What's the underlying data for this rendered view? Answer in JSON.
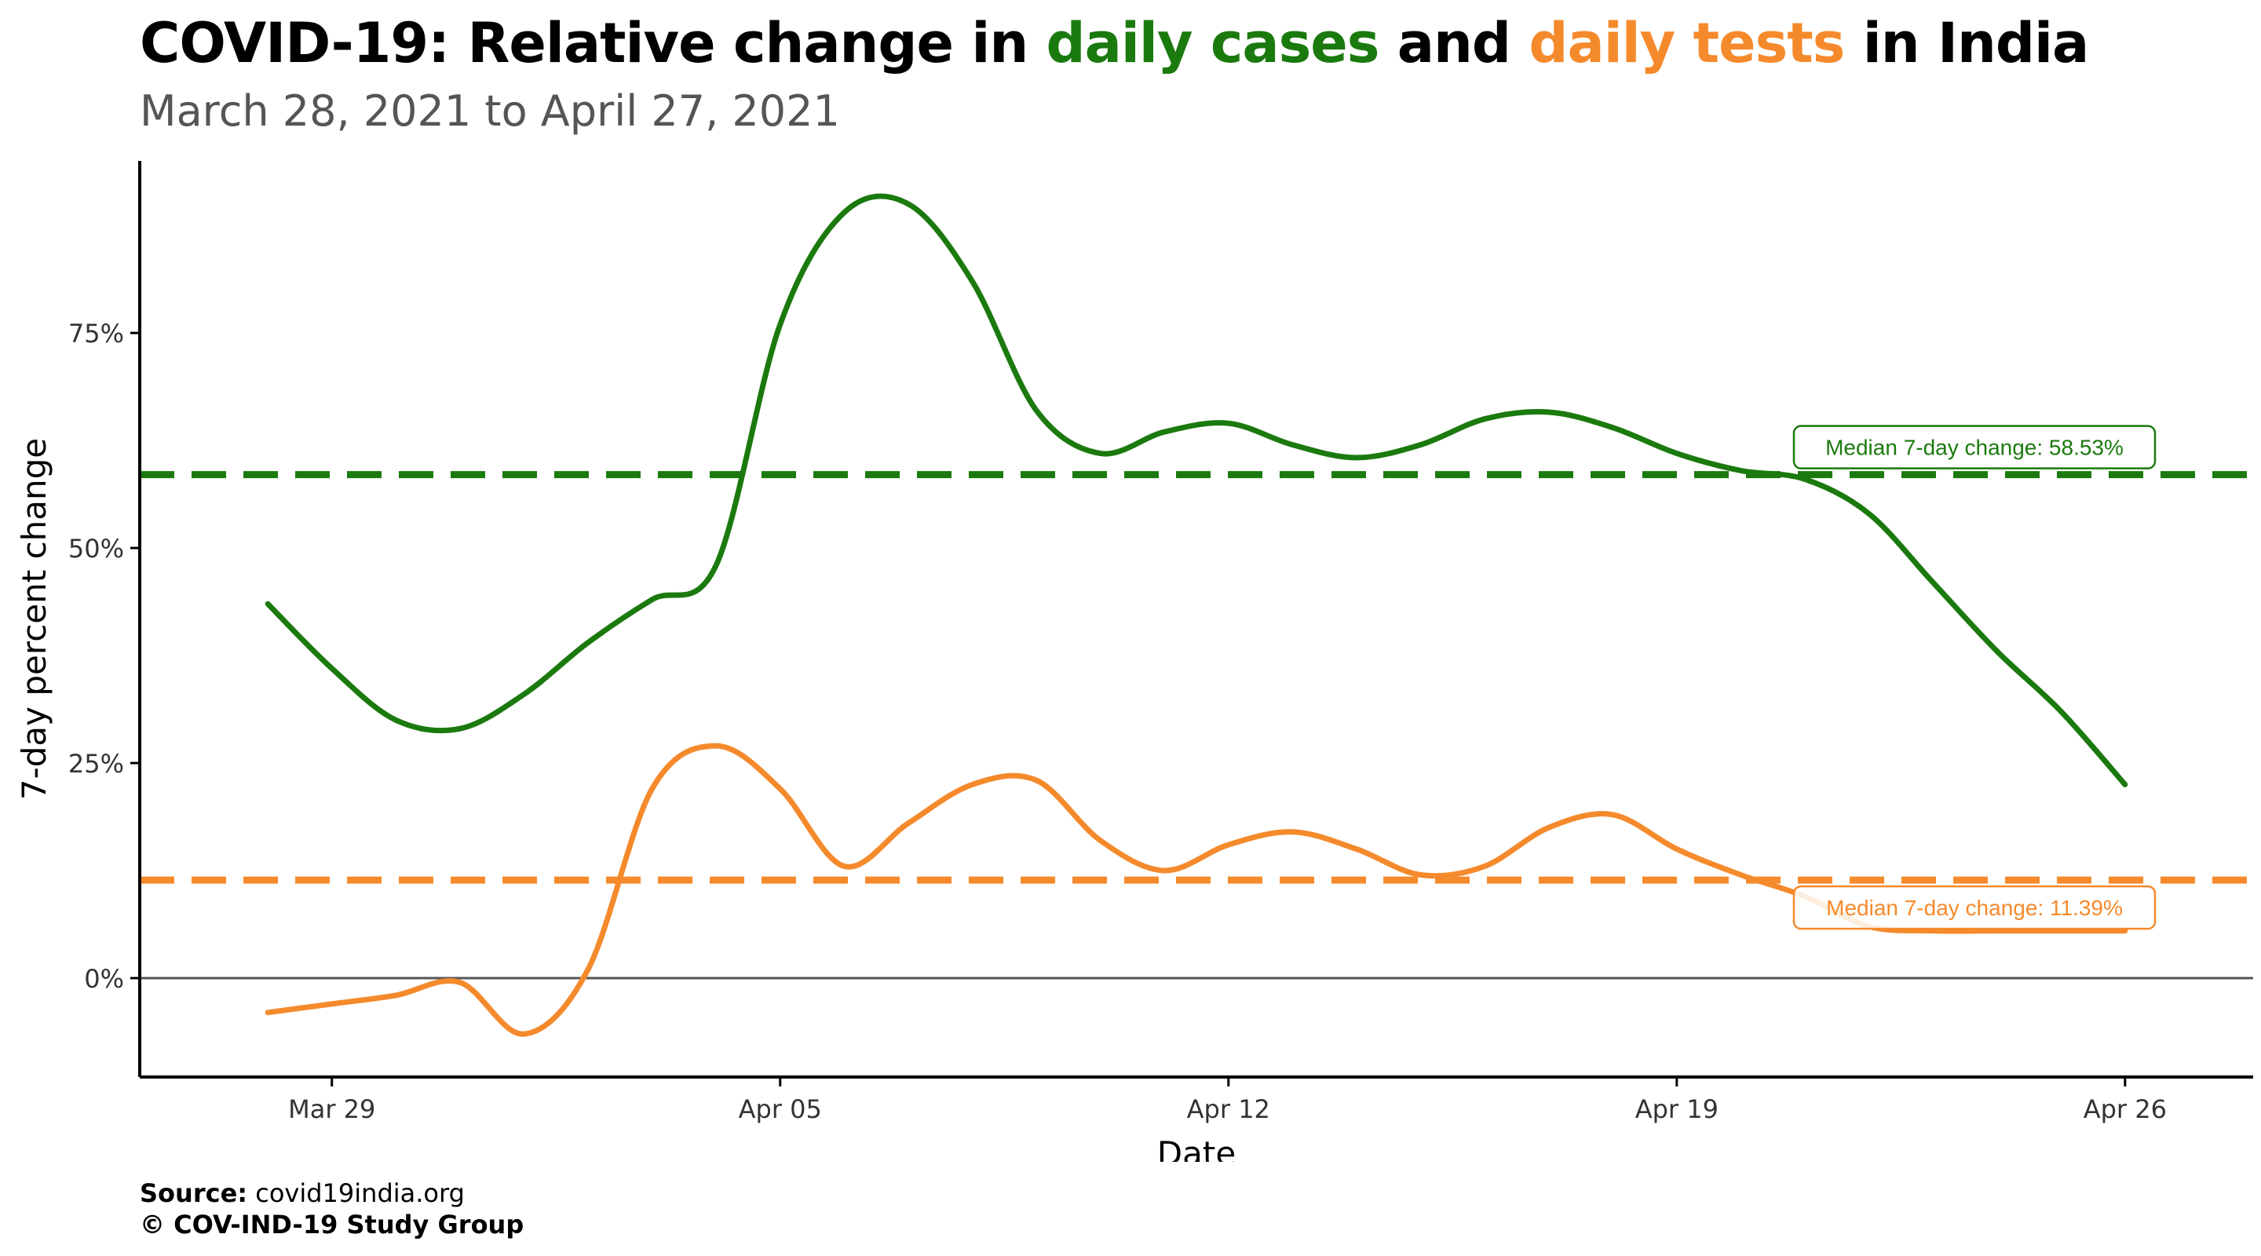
{
  "title": {
    "prefix": "COVID-19: Relative change in ",
    "cases_word": "daily cases",
    "middle": " and ",
    "tests_word": "daily tests",
    "suffix": " in India"
  },
  "subtitle": "March 28, 2021 to April 27, 2021",
  "footer": {
    "source_label": "Source:",
    "source_value": " covid19india.org",
    "copyright": "© COV-IND-19 Study Group"
  },
  "colors": {
    "cases": "#1b7a0e",
    "tests": "#f58a2c",
    "zero_line": "#555555"
  },
  "chart_data": {
    "type": "line",
    "xlabel": "Date",
    "ylabel": "7-day percent change",
    "x_ticks": [
      "Mar 29",
      "Apr 05",
      "Apr 12",
      "Apr 19",
      "Apr 26"
    ],
    "x_tick_dates": [
      "2021-03-29",
      "2021-04-05",
      "2021-04-12",
      "2021-04-19",
      "2021-04-26"
    ],
    "xlim": [
      "2021-03-26",
      "2021-04-28"
    ],
    "y_ticks": [
      "0%",
      "25%",
      "50%",
      "75%"
    ],
    "y_tick_values": [
      0,
      25,
      50,
      75
    ],
    "ylim": [
      -11.5,
      95
    ],
    "grid": false,
    "reference_lines": [
      {
        "series": "cases",
        "value": 58.53,
        "label": "Median 7-day change: 58.53%"
      },
      {
        "series": "tests",
        "value": 11.39,
        "label": "Median 7-day change: 11.39%"
      }
    ],
    "series": [
      {
        "key": "cases",
        "x": [
          "2021-03-28",
          "2021-03-29",
          "2021-03-30",
          "2021-03-31",
          "2021-04-01",
          "2021-04-02",
          "2021-04-03",
          "2021-04-04",
          "2021-04-05",
          "2021-04-06",
          "2021-04-07",
          "2021-04-08",
          "2021-04-09",
          "2021-04-10",
          "2021-04-11",
          "2021-04-12",
          "2021-04-13",
          "2021-04-14",
          "2021-04-15",
          "2021-04-16",
          "2021-04-17",
          "2021-04-18",
          "2021-04-19",
          "2021-04-20",
          "2021-04-21",
          "2021-04-22",
          "2021-04-23",
          "2021-04-24",
          "2021-04-25",
          "2021-04-26"
        ],
        "values": [
          43.5,
          36,
          30,
          29,
          33,
          39,
          44,
          48,
          76,
          89,
          90,
          81,
          66,
          61,
          63.5,
          64.5,
          62,
          60.5,
          62,
          65,
          65.8,
          64,
          61,
          59,
          58,
          54,
          46,
          38,
          31,
          22.5
        ]
      },
      {
        "key": "tests",
        "x": [
          "2021-03-28",
          "2021-03-29",
          "2021-03-30",
          "2021-03-31",
          "2021-04-01",
          "2021-04-02",
          "2021-04-03",
          "2021-04-04",
          "2021-04-05",
          "2021-04-06",
          "2021-04-07",
          "2021-04-08",
          "2021-04-09",
          "2021-04-10",
          "2021-04-11",
          "2021-04-12",
          "2021-04-13",
          "2021-04-14",
          "2021-04-15",
          "2021-04-16",
          "2021-04-17",
          "2021-04-18",
          "2021-04-19",
          "2021-04-20",
          "2021-04-21",
          "2021-04-22",
          "2021-04-23",
          "2021-04-24",
          "2021-04-25",
          "2021-04-26"
        ],
        "values": [
          -4,
          -3,
          -2,
          -0.5,
          -6.5,
          1,
          22,
          27,
          22,
          13,
          18,
          22.5,
          23,
          16,
          12.5,
          15.5,
          17,
          15,
          12,
          13,
          17.5,
          19,
          15,
          12,
          9.5,
          6,
          5.5,
          5.5,
          5.5,
          5.5
        ]
      }
    ]
  }
}
